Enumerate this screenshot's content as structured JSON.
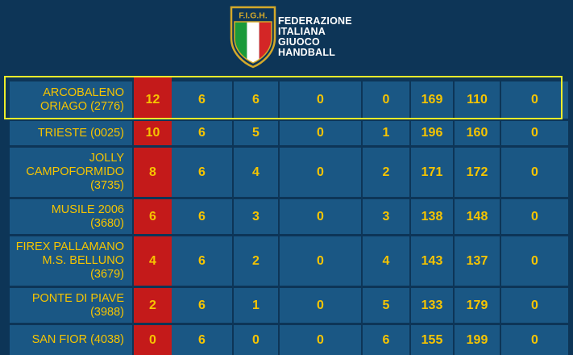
{
  "federation": {
    "logo_letters": "F.I.G.H.",
    "name_lines": [
      "FEDERAZIONE",
      "ITALIANA",
      "GIUOCO",
      "HANDBALL"
    ]
  },
  "colors": {
    "background": "#0d3557",
    "cell": "#1a5784",
    "points_cell": "#c41a1a",
    "text": "#f6c400",
    "highlight": "#ecec2a"
  },
  "standings": [
    {
      "team": "ARCOBALENO ORIAGO (2776)",
      "team_lines": [
        "ARCOBALENO",
        "ORIAGO (2776)"
      ],
      "cols": [
        "12",
        "6",
        "6",
        "0",
        "0",
        "169",
        "110",
        "0"
      ]
    },
    {
      "team": "TRIESTE (0025)",
      "team_lines": [
        "TRIESTE (0025)"
      ],
      "cols": [
        "10",
        "6",
        "5",
        "0",
        "1",
        "196",
        "160",
        "0"
      ]
    },
    {
      "team": "JOLLY CAMPOFORMIDO (3735)",
      "team_lines": [
        "JOLLY",
        "CAMPOFORMIDO",
        "(3735)"
      ],
      "cols": [
        "8",
        "6",
        "4",
        "0",
        "2",
        "171",
        "172",
        "0"
      ]
    },
    {
      "team": "MUSILE 2006 (3680)",
      "team_lines": [
        "MUSILE 2006",
        "(3680)"
      ],
      "cols": [
        "6",
        "6",
        "3",
        "0",
        "3",
        "138",
        "148",
        "0"
      ]
    },
    {
      "team": "FIREX PALLAMANO M.S. BELLUNO (3679)",
      "team_lines": [
        "FIREX PALLAMANO",
        "M.S. BELLUNO",
        "(3679)"
      ],
      "cols": [
        "4",
        "6",
        "2",
        "0",
        "4",
        "143",
        "137",
        "0"
      ]
    },
    {
      "team": "PONTE DI PIAVE (3988)",
      "team_lines": [
        "PONTE DI PIAVE",
        "(3988)"
      ],
      "cols": [
        "2",
        "6",
        "1",
        "0",
        "5",
        "133",
        "179",
        "0"
      ]
    },
    {
      "team": "SAN FIOR (4038)",
      "team_lines": [
        "SAN FIOR (4038)"
      ],
      "cols": [
        "0",
        "6",
        "0",
        "0",
        "6",
        "155",
        "199",
        "0"
      ]
    }
  ],
  "highlighted_row": 0
}
